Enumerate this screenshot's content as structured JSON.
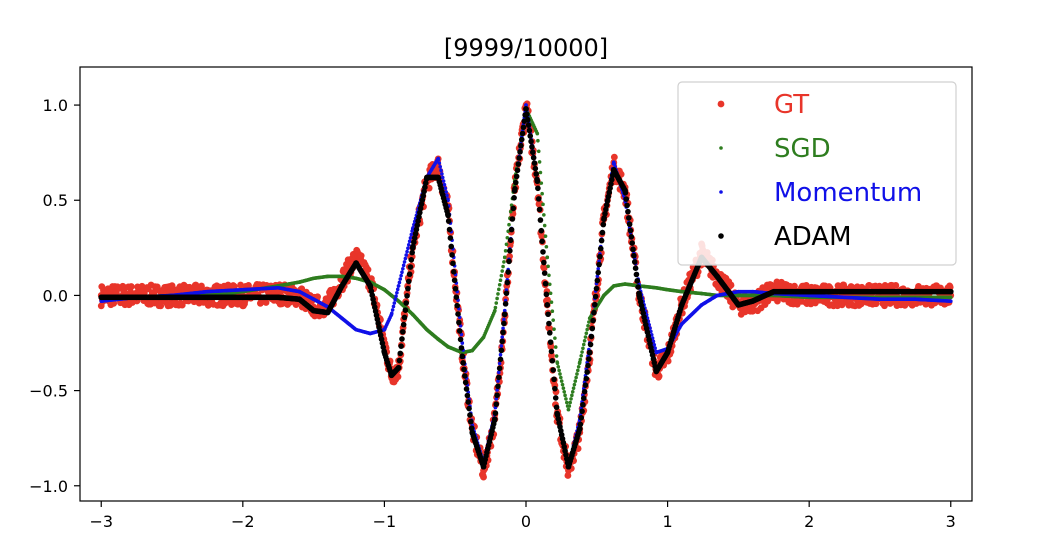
{
  "chart_data": {
    "type": "scatter",
    "title": "[9999/10000]",
    "xlabel": "",
    "ylabel": "",
    "xlim": [
      -3.15,
      3.15
    ],
    "ylim": [
      -1.08,
      1.2
    ],
    "x_ticks": [
      -3,
      -2,
      -1,
      0,
      1,
      2,
      3
    ],
    "x_tick_labels": [
      "−3",
      "−2",
      "−1",
      "0",
      "1",
      "2",
      "3"
    ],
    "y_ticks": [
      -1.0,
      -0.5,
      0.0,
      0.5,
      1.0
    ],
    "y_tick_labels": [
      "−1.0",
      "−0.5",
      "0.0",
      "0.5",
      "1.0"
    ],
    "grid": false,
    "legend_position": "upper right",
    "x": [
      -3.0,
      -2.75,
      -2.5,
      -2.25,
      -2.0,
      -1.75,
      -1.6,
      -1.5,
      -1.4,
      -1.3,
      -1.2,
      -1.1,
      -1.0,
      -0.95,
      -0.9,
      -0.8,
      -0.7,
      -0.62,
      -0.55,
      -0.45,
      -0.38,
      -0.3,
      -0.22,
      -0.15,
      -0.08,
      0.0,
      0.08,
      0.15,
      0.22,
      0.3,
      0.38,
      0.45,
      0.55,
      0.62,
      0.7,
      0.8,
      0.92,
      1.0,
      1.1,
      1.24,
      1.35,
      1.5,
      1.6,
      1.75,
      2.0,
      2.25,
      2.5,
      2.75,
      3.0
    ],
    "series": [
      {
        "name": "GT",
        "color": "#e8352a",
        "marker_size": 3.4,
        "values": [
          0.0,
          0.0,
          0.0,
          0.0,
          0.0,
          0.01,
          0.0,
          -0.06,
          -0.05,
          0.08,
          0.2,
          0.08,
          -0.25,
          -0.42,
          -0.38,
          0.25,
          0.6,
          0.68,
          0.45,
          -0.3,
          -0.7,
          -0.92,
          -0.65,
          -0.1,
          0.55,
          1.0,
          0.6,
          -0.05,
          -0.62,
          -0.92,
          -0.72,
          -0.3,
          0.4,
          0.68,
          0.55,
          0.0,
          -0.4,
          -0.32,
          -0.05,
          0.22,
          0.1,
          -0.05,
          -0.04,
          0.02,
          0.0,
          0.0,
          0.0,
          0.0,
          0.0
        ]
      },
      {
        "name": "SGD",
        "color": "#2e7d1f",
        "marker_size": 1.8,
        "values": [
          -0.01,
          -0.01,
          0.0,
          0.0,
          0.02,
          0.05,
          0.07,
          0.09,
          0.1,
          0.1,
          0.09,
          0.07,
          0.03,
          0.0,
          -0.03,
          -0.1,
          -0.18,
          -0.23,
          -0.27,
          -0.3,
          -0.29,
          -0.22,
          -0.08,
          0.2,
          0.6,
          0.98,
          0.85,
          0.2,
          -0.35,
          -0.6,
          -0.35,
          -0.12,
          0.0,
          0.05,
          0.06,
          0.05,
          0.04,
          0.03,
          0.02,
          0.01,
          0.0,
          0.0,
          0.0,
          0.0,
          -0.01,
          -0.01,
          -0.01,
          -0.01,
          -0.01
        ]
      },
      {
        "name": "Momentum",
        "color": "#1010e8",
        "marker_size": 1.8,
        "values": [
          -0.03,
          -0.01,
          0.0,
          0.02,
          0.03,
          0.04,
          0.02,
          -0.02,
          -0.06,
          -0.12,
          -0.18,
          -0.2,
          -0.18,
          -0.1,
          0.05,
          0.35,
          0.62,
          0.72,
          0.5,
          -0.25,
          -0.68,
          -0.88,
          -0.62,
          -0.08,
          0.55,
          1.0,
          0.6,
          -0.05,
          -0.62,
          -0.9,
          -0.65,
          -0.25,
          0.4,
          0.7,
          0.5,
          0.05,
          -0.3,
          -0.28,
          -0.15,
          -0.05,
          0.0,
          0.02,
          0.02,
          0.01,
          0.0,
          -0.01,
          -0.02,
          -0.02,
          -0.03
        ]
      },
      {
        "name": "ADAM",
        "color": "#000000",
        "marker_size": 2.8,
        "values": [
          -0.01,
          -0.01,
          -0.01,
          -0.01,
          -0.01,
          -0.01,
          -0.02,
          -0.08,
          -0.09,
          0.05,
          0.17,
          0.05,
          -0.3,
          -0.42,
          -0.38,
          0.25,
          0.62,
          0.62,
          0.42,
          -0.32,
          -0.72,
          -0.9,
          -0.65,
          -0.1,
          0.55,
          0.98,
          0.6,
          -0.05,
          -0.62,
          -0.9,
          -0.7,
          -0.3,
          0.4,
          0.66,
          0.55,
          0.0,
          -0.4,
          -0.3,
          -0.05,
          0.2,
          0.1,
          -0.05,
          -0.03,
          0.02,
          0.02,
          0.02,
          0.02,
          0.02,
          0.02
        ]
      }
    ]
  }
}
